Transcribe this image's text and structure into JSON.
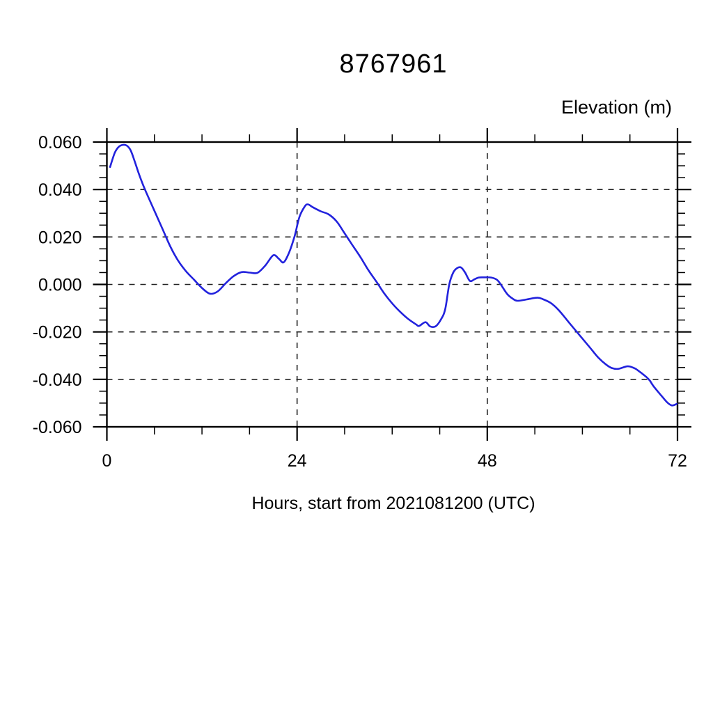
{
  "title": "8767961",
  "colors": {
    "line": "#2222dd",
    "axis": "#000000",
    "grid": "#222222",
    "background": "#ffffff"
  },
  "chart_data": {
    "type": "line",
    "title": "8767961",
    "ylabel": "Elevation (m)",
    "xlabel": "Hours, start from 2021081200 (UTC)",
    "xlim": [
      0,
      72
    ],
    "ylim": [
      -0.06,
      0.06
    ],
    "x_major_ticks": [
      0,
      24,
      48,
      72
    ],
    "x_tick_labels": [
      "0",
      "24",
      "48",
      "72"
    ],
    "x_minor_step": 6,
    "y_major_ticks": [
      0.06,
      0.04,
      0.02,
      0.0,
      -0.02,
      -0.04,
      -0.06
    ],
    "y_tick_labels": [
      "0.060",
      "0.040",
      "0.020",
      "0.000",
      "-0.020",
      "-0.040",
      "-0.060"
    ],
    "y_minor_step": 0.005,
    "grid": "dashed-at-interior-majors",
    "legend_position": "none",
    "series": [
      {
        "name": "elevation",
        "color": "#2222dd",
        "x": [
          0.4,
          1,
          1.5,
          2,
          2.5,
          3,
          3.5,
          4,
          4.5,
          5,
          6,
          7,
          8,
          9,
          10,
          11,
          12,
          13,
          14,
          15,
          16,
          17,
          18,
          19,
          20,
          21,
          21.7,
          22.3,
          23,
          23.7,
          24.3,
          25,
          25.4,
          26,
          27,
          28,
          29,
          30,
          31,
          32,
          33,
          34,
          35,
          36,
          37,
          38,
          39,
          39.4,
          40.2,
          40.8,
          41.5,
          42.2,
          42.7,
          43.2,
          43.7,
          44.2,
          44.7,
          45.2,
          45.8,
          46.4,
          46.9,
          47.5,
          48.5,
          49.2,
          49.7,
          50.5,
          51.2,
          51.8,
          53,
          54.3,
          55,
          56,
          57,
          58,
          59,
          60,
          61,
          62,
          63,
          63.7,
          64.5,
          65.7,
          66.5,
          67,
          68,
          68.5,
          69,
          70,
          70.7,
          71.3,
          72
        ],
        "y": [
          0.0495,
          0.0555,
          0.058,
          0.0588,
          0.0585,
          0.0565,
          0.052,
          0.047,
          0.0425,
          0.0385,
          0.031,
          0.0235,
          0.016,
          0.01,
          0.0055,
          0.002,
          -0.0015,
          -0.0039,
          -0.0029,
          0.0005,
          0.0035,
          0.0052,
          0.005,
          0.0049,
          0.008,
          0.0123,
          0.0108,
          0.0093,
          0.0135,
          0.0205,
          0.0285,
          0.033,
          0.0337,
          0.0325,
          0.0308,
          0.0295,
          0.0265,
          0.0215,
          0.0165,
          0.0115,
          0.006,
          0.0012,
          -0.0038,
          -0.008,
          -0.0115,
          -0.0145,
          -0.0168,
          -0.0175,
          -0.0159,
          -0.0177,
          -0.0176,
          -0.0145,
          -0.0103,
          0.0,
          0.005,
          0.0069,
          0.0071,
          0.005,
          0.0015,
          0.0022,
          0.0029,
          0.003,
          0.0029,
          0.002,
          0.0,
          -0.004,
          -0.006,
          -0.0069,
          -0.0063,
          -0.0056,
          -0.0062,
          -0.0078,
          -0.0108,
          -0.0148,
          -0.0188,
          -0.0228,
          -0.0268,
          -0.0308,
          -0.0338,
          -0.0352,
          -0.0356,
          -0.0345,
          -0.0352,
          -0.0362,
          -0.0388,
          -0.0405,
          -0.043,
          -0.047,
          -0.0497,
          -0.051,
          -0.0502
        ]
      }
    ]
  }
}
